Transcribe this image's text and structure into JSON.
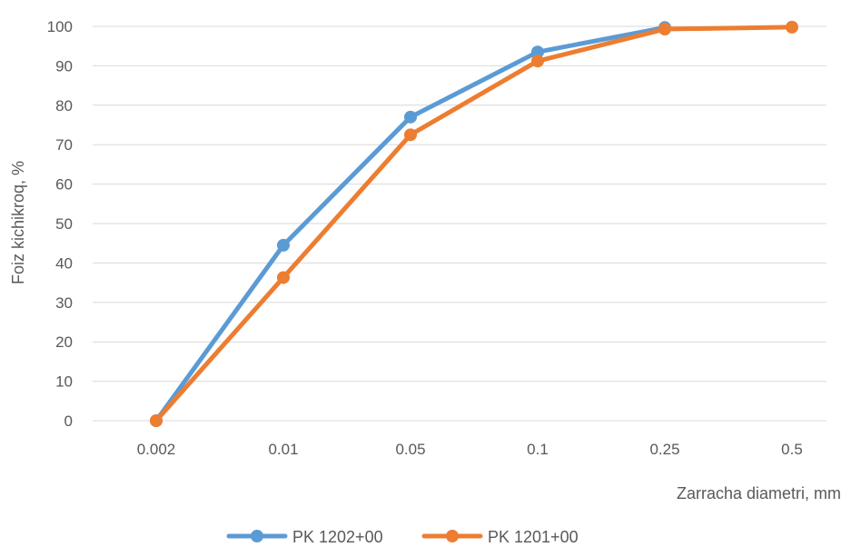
{
  "chart_data": {
    "type": "line",
    "title": "",
    "xlabel": "Zarracha diametri, mm",
    "ylabel": "Foiz kichikroq,  %",
    "categories": [
      "0.002",
      "0.01",
      "0.05",
      "0.1",
      "0.25",
      "0.5"
    ],
    "ylim": [
      0,
      100
    ],
    "yticks": [
      "0",
      "10",
      "20",
      "30",
      "40",
      "50",
      "60",
      "70",
      "80",
      "90",
      "100"
    ],
    "grid": true,
    "legend_position": "bottom",
    "series": [
      {
        "name": "PK 1202+00",
        "color": "#5B9BD5",
        "values": [
          0,
          44.5,
          77,
          93.5,
          99.7,
          null
        ]
      },
      {
        "name": "PK 1201+00",
        "color": "#ED7D31",
        "values": [
          0,
          36.3,
          72.5,
          91.2,
          99.3,
          99.8
        ]
      }
    ]
  }
}
